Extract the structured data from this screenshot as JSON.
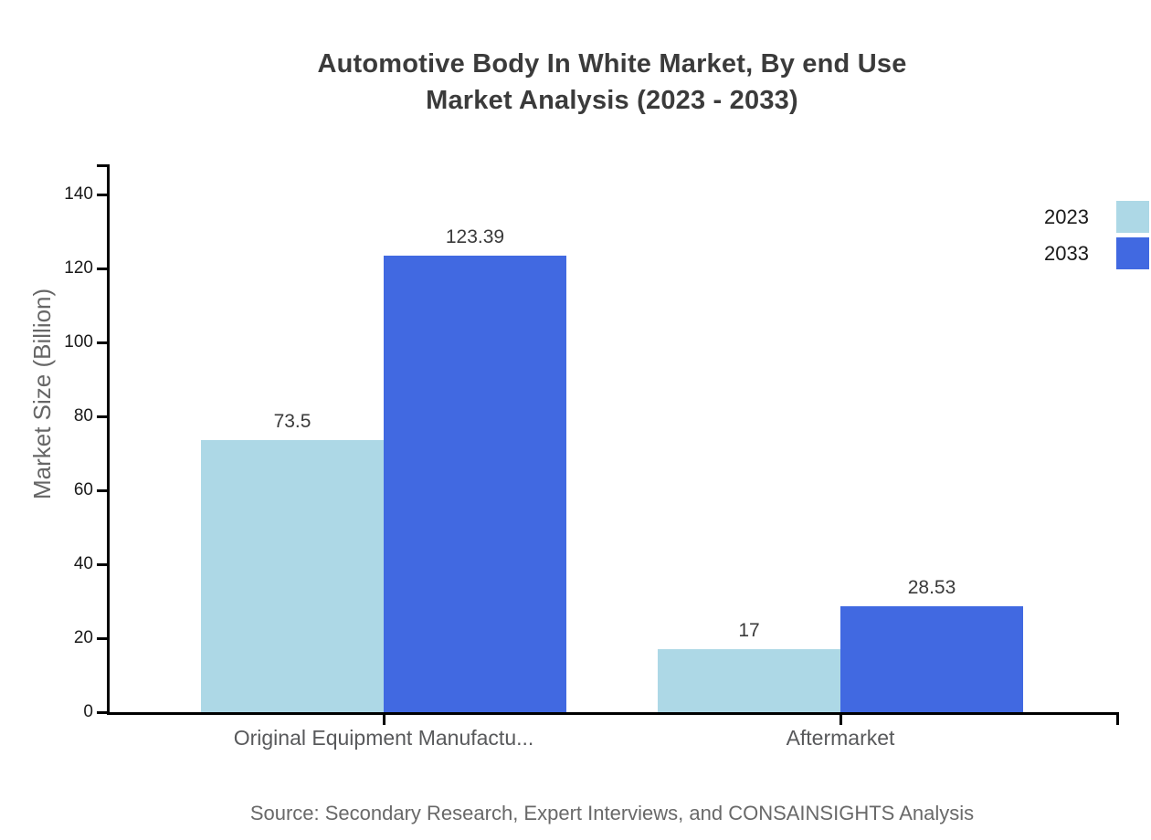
{
  "title": {
    "line1": "Automotive Body In White Market, By end Use",
    "line2": "Market Analysis (2023 - 2033)"
  },
  "chart_data": {
    "type": "bar",
    "categories": [
      "Original Equipment Manufactu...",
      "Aftermarket"
    ],
    "series": [
      {
        "name": "2023",
        "color": "#ADD8E6",
        "values": [
          73.5,
          17
        ]
      },
      {
        "name": "2033",
        "color": "#4169E1",
        "values": [
          123.39,
          28.53
        ]
      }
    ],
    "data_labels": [
      [
        "73.5",
        "17"
      ],
      [
        "123.39",
        "28.53"
      ]
    ],
    "xlabel": "",
    "ylabel": "Market Size (Billion)",
    "ylim": [
      0,
      140
    ],
    "yticks": [
      0,
      20,
      40,
      60,
      80,
      100,
      120,
      140
    ],
    "grid": false,
    "legend_position": "top-right"
  },
  "source": "Source: Secondary Research, Expert Interviews, and CONSAINSIGHTS Analysis",
  "colors": {
    "background": "#FFFFFF",
    "axis": "#000000",
    "title_text": "#3B3B3B",
    "tick_text": "#1A1A1A",
    "category_text": "#58595B",
    "muted_text": "#696969",
    "series_2023": "#ADD8E6",
    "series_2033": "#4169E1"
  }
}
